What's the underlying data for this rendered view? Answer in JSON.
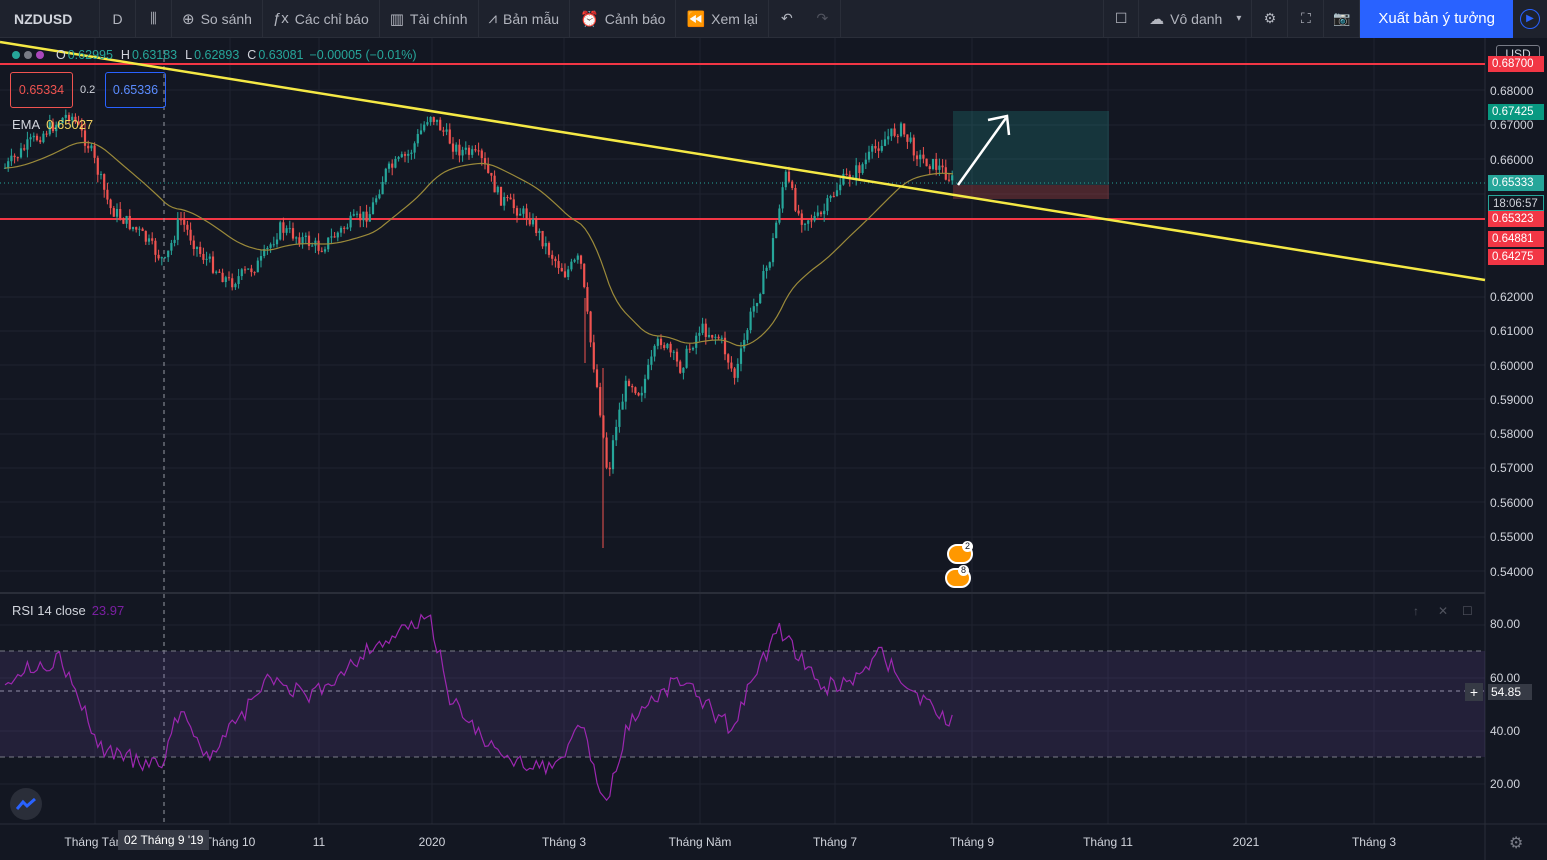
{
  "toolbar": {
    "symbol": "NZDUSD",
    "interval": "D",
    "compare": "So sánh",
    "indicators": "Các chỉ báo",
    "financials": "Tài chính",
    "templates": "Bản mẫu",
    "alerts": "Cảnh báo",
    "replay": "Xem lại",
    "layout_name": "Vô danh",
    "publish": "Xuất bản ý tưởng"
  },
  "legend": {
    "open_label": "O",
    "open": "0.62995",
    "high_label": "H",
    "high": "0.63183",
    "low_label": "L",
    "low": "0.62893",
    "close_label": "C",
    "close": "0.63081",
    "change": "−0.00005 (−0.01%)",
    "sell_price": "0.65334",
    "quantity": "0.2",
    "buy_price": "0.65336",
    "ema_label": "EMA",
    "ema_value": "0.65027"
  },
  "price_axis": {
    "currency": "USD",
    "labels": [
      "0.68000",
      "0.67000",
      "0.66000",
      "0.62000",
      "0.61000",
      "0.60000",
      "0.59000",
      "0.58000",
      "0.57000",
      "0.56000",
      "0.55000",
      "0.54000"
    ],
    "tags": [
      {
        "text": "0.68700",
        "color": "#f23645"
      },
      {
        "text": "0.67425",
        "color": "#089981"
      },
      {
        "text": "0.65333",
        "color": "#26a69a"
      },
      {
        "text": "18:06:57",
        "color": "#26a69a"
      },
      {
        "text": "0.65323",
        "color": "#f23645"
      },
      {
        "text": "0.64881",
        "color": "#f23645"
      },
      {
        "text": "0.64275",
        "color": "#f23645"
      }
    ]
  },
  "time_axis": {
    "labels": [
      "Tháng Tám",
      "Tháng 10",
      "11",
      "2020",
      "Tháng 3",
      "Tháng Năm",
      "Tháng 7",
      "Tháng 9",
      "Tháng 11",
      "2021",
      "Tháng 3"
    ],
    "crosshair_date": "02 Tháng 9 '19"
  },
  "events": {
    "count_a": "2",
    "count_b": "8"
  },
  "rsi": {
    "label": "RSI 14 close",
    "value": "23.97",
    "axis_labels": [
      "80.00",
      "60.00",
      "40.00",
      "20.00"
    ],
    "cursor_value": "54.85"
  },
  "colors": {
    "up": "#26a69a",
    "down": "#ef5350",
    "trendline": "#f5e945",
    "level": "#f23645",
    "ema": "#9b8a3a",
    "rsi": "#9c27b0"
  }
}
